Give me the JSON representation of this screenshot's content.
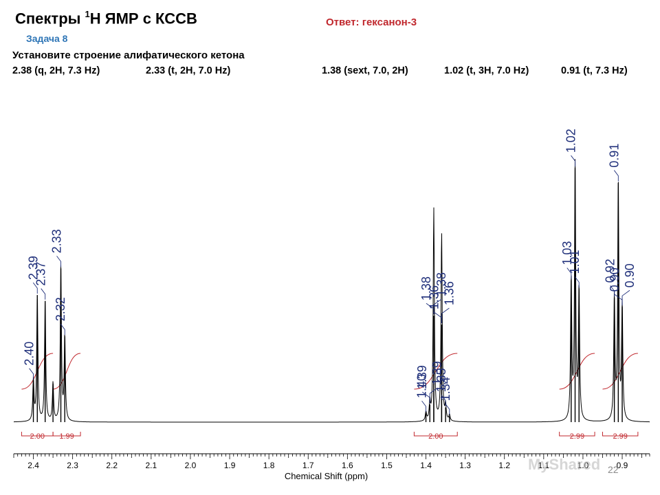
{
  "header": {
    "title_prefix": "Спектры ",
    "title_sup": "1",
    "title_suffix": "Н ЯМР с КССВ",
    "answer": "Ответ: гексанон-3",
    "task": "Задача 8",
    "instruction": "Установите строение алифатического кетона",
    "data_lines": [
      "2.38 (q, 2H, 7.3 Hz)",
      "2.33 (t, 2H, 7.0 Hz)",
      "1.38 (sext, 7.0, 2H)",
      "1.02 (t, 3H, 7.0 Hz)",
      "0.91 (t, 7.3 Hz)"
    ]
  },
  "footer": {
    "page_number": "22",
    "watermark": "MyShared"
  },
  "chart_data": {
    "type": "line",
    "title": "",
    "xlabel": "Chemical Shift (ppm)",
    "ylabel": "",
    "xlim": [
      2.45,
      0.83
    ],
    "x_reversed": true,
    "grid": false,
    "x_ticks": [
      "2.4",
      "2.3",
      "2.2",
      "2.1",
      "2.0",
      "1.9",
      "1.8",
      "1.7",
      "1.6",
      "1.5",
      "1.4",
      "1.3",
      "1.2",
      "1.1",
      "1.0",
      "0.9"
    ],
    "peaks": [
      {
        "ppm": 2.4,
        "h": 0.14
      },
      {
        "ppm": 2.39,
        "h": 0.43
      },
      {
        "ppm": 2.37,
        "h": 0.41
      },
      {
        "ppm": 2.35,
        "h": 0.13
      },
      {
        "ppm": 2.33,
        "h": 0.52
      },
      {
        "ppm": 2.32,
        "h": 0.29
      },
      {
        "ppm": 1.4,
        "h": 0.03
      },
      {
        "ppm": 1.39,
        "h": 0.06
      },
      {
        "ppm": 1.38,
        "h": 0.36
      },
      {
        "ppm": 1.38,
        "h": 0.36
      },
      {
        "ppm": 1.36,
        "h": 0.33
      },
      {
        "ppm": 1.36,
        "h": 0.31
      },
      {
        "ppm": 1.35,
        "h": 0.05
      },
      {
        "ppm": 1.34,
        "h": 0.02
      },
      {
        "ppm": 1.03,
        "h": 0.48
      },
      {
        "ppm": 1.02,
        "h": 0.86
      },
      {
        "ppm": 1.01,
        "h": 0.45
      },
      {
        "ppm": 0.92,
        "h": 0.42
      },
      {
        "ppm": 0.91,
        "h": 0.81
      },
      {
        "ppm": 0.9,
        "h": 0.39
      }
    ],
    "peak_labels": [
      {
        "text": "2.40",
        "ppm": 2.4
      },
      {
        "text": "2.39",
        "ppm": 2.39
      },
      {
        "text": "2.37",
        "ppm": 2.37
      },
      {
        "text": "2.33",
        "ppm": 2.33
      },
      {
        "text": "2.32",
        "ppm": 2.32
      },
      {
        "text": "1.40",
        "ppm": 1.4
      },
      {
        "text": "1.39",
        "ppm": 1.39
      },
      {
        "text": "1.39",
        "ppm": 1.39
      },
      {
        "text": "1.38",
        "ppm": 1.38
      },
      {
        "text": "1.38",
        "ppm": 1.38
      },
      {
        "text": "1.36",
        "ppm": 1.36
      },
      {
        "text": "1.36",
        "ppm": 1.36
      },
      {
        "text": "1.35",
        "ppm": 1.35
      },
      {
        "text": "1.34",
        "ppm": 1.34
      },
      {
        "text": "1.03",
        "ppm": 1.03
      },
      {
        "text": "1.02",
        "ppm": 1.02
      },
      {
        "text": "1.01",
        "ppm": 1.01
      },
      {
        "text": "0.92",
        "ppm": 0.92
      },
      {
        "text": "0.91",
        "ppm": 0.91
      },
      {
        "text": "0.90",
        "ppm": 0.9
      },
      {
        "text": "0.90",
        "ppm": 0.9
      }
    ],
    "integrals": [
      {
        "value": "2.00",
        "from": 2.43,
        "to": 2.35
      },
      {
        "value": "1.99",
        "from": 2.35,
        "to": 2.28
      },
      {
        "value": "2.00",
        "from": 1.43,
        "to": 1.32
      },
      {
        "value": "2.99",
        "from": 1.06,
        "to": 0.97
      },
      {
        "value": "2.99",
        "from": 0.95,
        "to": 0.86
      }
    ],
    "colors": {
      "spectrum": "#000000",
      "labels": "#1f2f7a",
      "integral": "#c0272d"
    }
  }
}
